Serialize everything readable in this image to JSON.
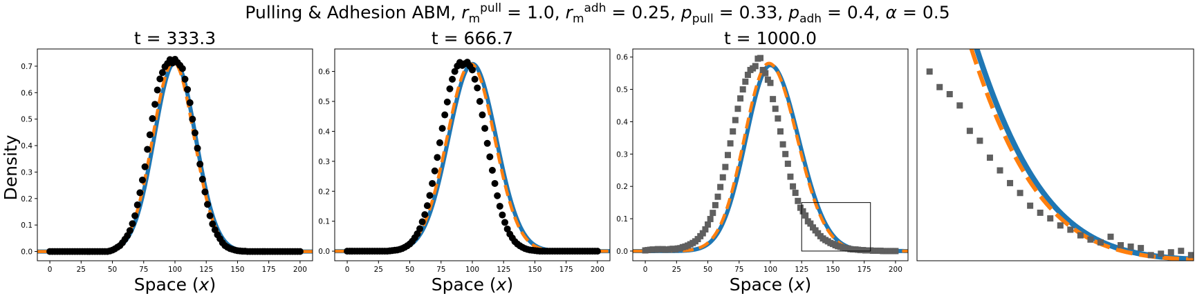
{
  "figure": {
    "title_prefix": "Pulling & Adhesion ABM, ",
    "params": [
      {
        "sym": "r",
        "sub": "m",
        "sup": "pull",
        "val": " = 1.0, "
      },
      {
        "sym": "r",
        "sub": "m",
        "sup": "adh",
        "val": " = 0.25, "
      },
      {
        "sym": "p",
        "sub": "pull",
        "sup": "",
        "val": " = 0.33, "
      },
      {
        "sym": "p",
        "sub": "adh",
        "sup": "",
        "val": " = 0.4, "
      },
      {
        "sym": "α",
        "sub": "",
        "sup": "",
        "val": " = 0.5"
      }
    ],
    "ylabel": "Density",
    "xlabel": "Space (x)",
    "colors": {
      "model_line": "#1f77b4",
      "pde_line": "#ff7f0e",
      "abm_dots": "#000000",
      "abm_squares": "#5f5f5f"
    }
  },
  "chart_data": [
    {
      "type": "line",
      "title": "t = 333.3",
      "xlabel": "Space (x)",
      "ylabel": "Density",
      "xlim": [
        -10,
        210
      ],
      "ylim": [
        -0.035,
        0.765
      ],
      "xticks": [
        "0",
        "25",
        "50",
        "75",
        "100",
        "125",
        "150",
        "175",
        "200"
      ],
      "yticks": [
        "0.0",
        "0.1",
        "0.2",
        "0.3",
        "0.4",
        "0.5",
        "0.6",
        "0.7"
      ],
      "curve_model": {
        "center": 100,
        "amplitude": 0.715,
        "sigma": 16.5
      },
      "marker": "circle",
      "abm": {
        "x": [
          0,
          2,
          4,
          6,
          8,
          10,
          12,
          14,
          16,
          18,
          20,
          22,
          24,
          26,
          28,
          30,
          32,
          34,
          36,
          38,
          40,
          42,
          44,
          46,
          48,
          50,
          52,
          54,
          56,
          58,
          60,
          62,
          64,
          66,
          68,
          70,
          72,
          74,
          76,
          78,
          80,
          82,
          84,
          86,
          88,
          90,
          92,
          94,
          96,
          98,
          100,
          102,
          104,
          106,
          108,
          110,
          112,
          114,
          116,
          118,
          120,
          122,
          124,
          126,
          128,
          130,
          132,
          134,
          136,
          138,
          140,
          142,
          144,
          146,
          148,
          150,
          152,
          154,
          156,
          158,
          160,
          162,
          164,
          166,
          168,
          170,
          172,
          174,
          176,
          178,
          180,
          182,
          184,
          186,
          188,
          190,
          192,
          194,
          196,
          198,
          200
        ],
        "y": [
          0,
          0,
          0,
          0,
          0,
          0,
          0,
          0,
          0,
          0,
          0,
          0,
          0,
          0,
          0,
          0,
          0,
          0,
          0,
          0,
          0,
          0,
          0,
          0,
          0.002,
          0.005,
          0.01,
          0.016,
          0.022,
          0.033,
          0.046,
          0.06,
          0.079,
          0.105,
          0.135,
          0.176,
          0.222,
          0.27,
          0.32,
          0.386,
          0.441,
          0.502,
          0.556,
          0.61,
          0.652,
          0.676,
          0.698,
          0.71,
          0.725,
          0.712,
          0.726,
          0.714,
          0.703,
          0.691,
          0.651,
          0.612,
          0.562,
          0.5,
          0.448,
          0.39,
          0.33,
          0.273,
          0.225,
          0.178,
          0.135,
          0.104,
          0.082,
          0.063,
          0.048,
          0.033,
          0.022,
          0.016,
          0.011,
          0.008,
          0.005,
          0.003,
          0.002,
          0.001,
          0.001,
          0,
          0,
          0,
          0,
          0,
          0,
          0,
          0,
          0,
          0,
          0,
          0,
          0,
          0,
          0,
          0,
          0,
          0,
          0,
          0,
          0,
          0
        ]
      }
    },
    {
      "type": "line",
      "title": "t = 666.7",
      "xlabel": "Space (x)",
      "xlim": [
        -10,
        210
      ],
      "ylim": [
        -0.032,
        0.675
      ],
      "xticks": [
        "0",
        "25",
        "50",
        "75",
        "100",
        "125",
        "150",
        "175",
        "200"
      ],
      "yticks": [
        "0.0",
        "0.1",
        "0.2",
        "0.3",
        "0.4",
        "0.5",
        "0.6"
      ],
      "curve_model": {
        "center": 100,
        "amplitude": 0.625,
        "sigma": 19.0
      },
      "marker": "circle",
      "abm": {
        "x": [
          0,
          2,
          4,
          6,
          8,
          10,
          12,
          14,
          16,
          18,
          20,
          22,
          24,
          26,
          28,
          30,
          32,
          34,
          36,
          38,
          40,
          42,
          44,
          46,
          48,
          50,
          52,
          54,
          56,
          58,
          60,
          62,
          64,
          66,
          68,
          70,
          72,
          74,
          76,
          78,
          80,
          82,
          84,
          86,
          88,
          90,
          92,
          94,
          96,
          98,
          100,
          102,
          104,
          106,
          108,
          110,
          112,
          114,
          116,
          118,
          120,
          122,
          124,
          126,
          128,
          130,
          132,
          134,
          136,
          138,
          140,
          142,
          144,
          146,
          148,
          150,
          152,
          154,
          156,
          158,
          160,
          162,
          164,
          166,
          168,
          170,
          172,
          174,
          176,
          178,
          180,
          182,
          184,
          186,
          188,
          190,
          192,
          194,
          196,
          198,
          200
        ],
        "y": [
          0,
          0,
          0,
          0,
          0,
          0,
          0,
          0,
          0,
          0,
          0,
          0,
          0,
          0,
          0,
          0,
          0,
          0.001,
          0.002,
          0.003,
          0.004,
          0.006,
          0.009,
          0.013,
          0.018,
          0.024,
          0.033,
          0.045,
          0.058,
          0.075,
          0.098,
          0.122,
          0.152,
          0.186,
          0.226,
          0.268,
          0.313,
          0.362,
          0.41,
          0.455,
          0.498,
          0.542,
          0.574,
          0.6,
          0.618,
          0.63,
          0.62,
          0.626,
          0.631,
          0.618,
          0.605,
          0.574,
          0.545,
          0.5,
          0.455,
          0.41,
          0.36,
          0.315,
          0.27,
          0.226,
          0.185,
          0.15,
          0.121,
          0.096,
          0.074,
          0.057,
          0.044,
          0.032,
          0.024,
          0.018,
          0.013,
          0.009,
          0.006,
          0.004,
          0.003,
          0.002,
          0.001,
          0,
          0,
          0,
          0,
          0,
          0,
          0,
          0,
          0,
          0,
          0,
          0,
          0,
          0,
          0,
          0,
          0,
          0,
          0,
          0,
          0,
          0,
          0,
          0
        ]
      }
    },
    {
      "type": "line",
      "title": "t = 1000.0",
      "xlabel": "Space (x)",
      "xlim": [
        -10,
        210
      ],
      "ylim": [
        -0.03,
        0.625
      ],
      "xticks": [
        "0",
        "25",
        "50",
        "75",
        "100",
        "125",
        "150",
        "175",
        "200"
      ],
      "yticks": [
        "0.0",
        "0.1",
        "0.2",
        "0.3",
        "0.4",
        "0.5",
        "0.6"
      ],
      "curve_model": {
        "center": 100,
        "amplitude": 0.575,
        "sigma_left": 19.5,
        "sigma_right": 22.5
      },
      "marker": "square",
      "inset_box": {
        "x": [
          125,
          180
        ],
        "y": [
          0.0,
          0.15
        ]
      },
      "abm": {
        "x": [
          0,
          2,
          4,
          6,
          8,
          10,
          12,
          14,
          16,
          18,
          20,
          22,
          24,
          26,
          28,
          30,
          32,
          34,
          36,
          38,
          40,
          42,
          44,
          46,
          48,
          50,
          52,
          54,
          56,
          58,
          60,
          62,
          64,
          66,
          68,
          70,
          72,
          74,
          76,
          78,
          80,
          82,
          84,
          86,
          88,
          90,
          92,
          94,
          96,
          98,
          100,
          102,
          104,
          106,
          108,
          110,
          112,
          114,
          116,
          118,
          120,
          122,
          124,
          126,
          128,
          130,
          132,
          134,
          136,
          138,
          140,
          142,
          144,
          146,
          148,
          150,
          152,
          154,
          156,
          158,
          160,
          162,
          164,
          166,
          168,
          170,
          172,
          174,
          176,
          178,
          180,
          182,
          184,
          186,
          188,
          190,
          192,
          194,
          196,
          198,
          200
        ],
        "y": [
          0.002,
          0.003,
          0.004,
          0.005,
          0.004,
          0.006,
          0.005,
          0.006,
          0.004,
          0.005,
          0.006,
          0.007,
          0.005,
          0.008,
          0.009,
          0.012,
          0.014,
          0.017,
          0.021,
          0.025,
          0.03,
          0.037,
          0.046,
          0.055,
          0.067,
          0.082,
          0.099,
          0.118,
          0.142,
          0.168,
          0.198,
          0.228,
          0.26,
          0.297,
          0.333,
          0.37,
          0.405,
          0.44,
          0.472,
          0.5,
          0.524,
          0.545,
          0.56,
          0.565,
          0.572,
          0.595,
          0.597,
          0.56,
          0.55,
          0.53,
          0.52,
          0.47,
          0.44,
          0.41,
          0.37,
          0.33,
          0.3,
          0.27,
          0.23,
          0.2,
          0.18,
          0.155,
          0.134,
          0.123,
          0.11,
          0.092,
          0.085,
          0.073,
          0.064,
          0.055,
          0.046,
          0.039,
          0.034,
          0.03,
          0.025,
          0.022,
          0.018,
          0.015,
          0.013,
          0.011,
          0.009,
          0.008,
          0.006,
          0.005,
          0.005,
          0.004,
          0.003,
          0.003,
          0.002,
          0.002,
          0.002,
          0.001,
          0.001,
          0.001,
          0.001,
          0,
          0,
          0,
          0,
          0,
          0
        ]
      }
    },
    {
      "type": "line",
      "title": "",
      "xlim": [
        125,
        180
      ],
      "ylim": [
        0.0,
        0.15
      ],
      "xticks": [],
      "yticks": [],
      "zoom_of": "t = 1000.0",
      "marker": "square",
      "abm": {
        "x": [
          127.5,
          129.5,
          131.5,
          133.5,
          135.5,
          137.5,
          139.5,
          141.5,
          143.5,
          145.5,
          147.5,
          149.5,
          151.5,
          153.5,
          155.5,
          157.5,
          159.5,
          161.5,
          163.5,
          165.5,
          167.5,
          169.5,
          171.5,
          173.5,
          175.5,
          177.5,
          179.5
        ],
        "y": [
          0.134,
          0.123,
          0.118,
          0.11,
          0.092,
          0.085,
          0.073,
          0.064,
          0.055,
          0.048,
          0.039,
          0.034,
          0.03,
          0.025,
          0.022,
          0.018,
          0.015,
          0.013,
          0.017,
          0.011,
          0.01,
          0.009,
          0.004,
          0.005,
          0.006,
          0.007,
          0.004
        ]
      }
    }
  ]
}
